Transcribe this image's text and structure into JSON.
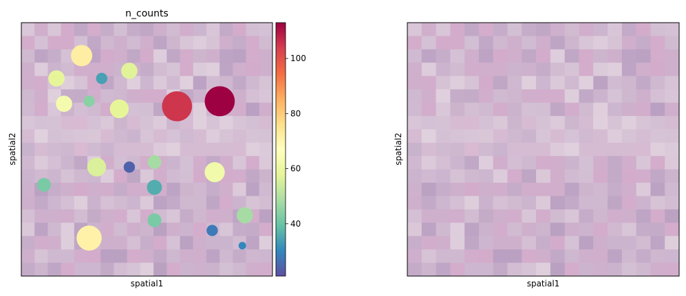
{
  "chart_data": [
    {
      "type": "scatter",
      "title": "n_counts",
      "xlabel": "spatial1",
      "ylabel": "spatial2",
      "background": "tissue-image",
      "colorbar": {
        "colormap": "Spectral_r",
        "vmin": 21,
        "vmax": 113,
        "ticks": [
          40,
          60,
          80,
          100
        ],
        "colors": [
          "#5e4fa2",
          "#3288bd",
          "#66c2a5",
          "#abdda4",
          "#e6f598",
          "#ffffbf",
          "#fee08b",
          "#fdae61",
          "#f46d43",
          "#d53e4f",
          "#9e0142"
        ]
      },
      "points": [
        {
          "x": 0.24,
          "y": 0.87,
          "size": 0.085,
          "value": 72
        },
        {
          "x": 0.32,
          "y": 0.78,
          "size": 0.045,
          "value": 34
        },
        {
          "x": 0.14,
          "y": 0.78,
          "size": 0.065,
          "value": 58
        },
        {
          "x": 0.43,
          "y": 0.81,
          "size": 0.065,
          "value": 57
        },
        {
          "x": 0.17,
          "y": 0.68,
          "size": 0.065,
          "value": 63
        },
        {
          "x": 0.27,
          "y": 0.69,
          "size": 0.045,
          "value": 44
        },
        {
          "x": 0.39,
          "y": 0.66,
          "size": 0.075,
          "value": 58
        },
        {
          "x": 0.62,
          "y": 0.67,
          "size": 0.12,
          "value": 105
        },
        {
          "x": 0.79,
          "y": 0.69,
          "size": 0.12,
          "value": 113
        },
        {
          "x": 0.3,
          "y": 0.43,
          "size": 0.075,
          "value": 56
        },
        {
          "x": 0.43,
          "y": 0.43,
          "size": 0.045,
          "value": 24
        },
        {
          "x": 0.53,
          "y": 0.45,
          "size": 0.055,
          "value": 48
        },
        {
          "x": 0.09,
          "y": 0.36,
          "size": 0.055,
          "value": 42
        },
        {
          "x": 0.53,
          "y": 0.35,
          "size": 0.06,
          "value": 36
        },
        {
          "x": 0.77,
          "y": 0.41,
          "size": 0.08,
          "value": 62
        },
        {
          "x": 0.53,
          "y": 0.22,
          "size": 0.055,
          "value": 42
        },
        {
          "x": 0.27,
          "y": 0.15,
          "size": 0.1,
          "value": 71
        },
        {
          "x": 0.76,
          "y": 0.18,
          "size": 0.045,
          "value": 28
        },
        {
          "x": 0.89,
          "y": 0.24,
          "size": 0.065,
          "value": 48
        },
        {
          "x": 0.88,
          "y": 0.12,
          "size": 0.03,
          "value": 30
        }
      ]
    },
    {
      "type": "image",
      "title": "",
      "xlabel": "spatial1",
      "ylabel": "spatial2",
      "background": "tissue-image"
    }
  ],
  "tissue": {
    "cols": 19,
    "rows": 19,
    "base_color": "#cbb3cd",
    "light_color": "#e2d3df",
    "pink_color": "#d5abcb",
    "dark_color": "#b59bbf"
  }
}
